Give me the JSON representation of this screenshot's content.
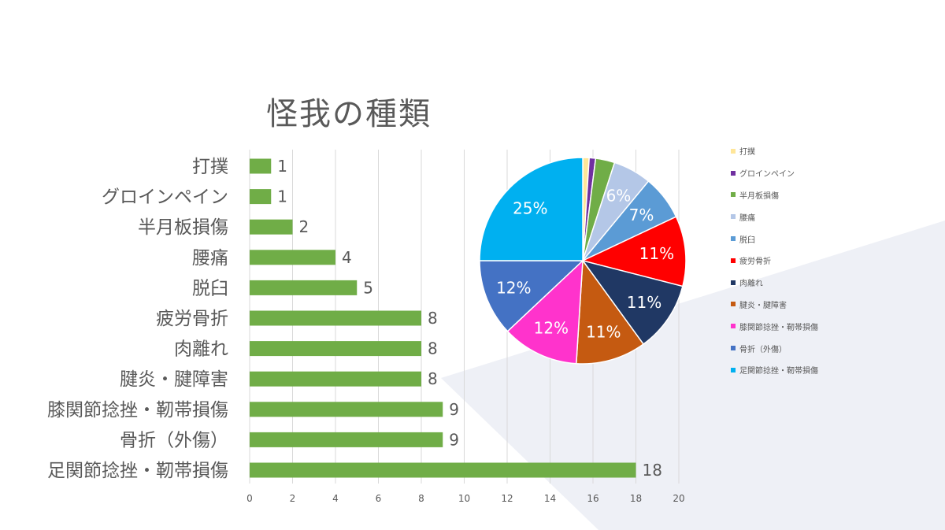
{
  "colors": {
    "bar": "#70ad47",
    "grid": "#d9d9d9",
    "text": "#595959",
    "background_shape": "#eef0f6"
  },
  "chart_data": [
    {
      "type": "bar",
      "orientation": "horizontal",
      "title": "怪我の種類",
      "categories": [
        "打撲",
        "グロインペイン",
        "半月板損傷",
        "腰痛",
        "脱臼",
        "疲労骨折",
        "肉離れ",
        "腱炎・腱障害",
        "膝関節捻挫・靭帯損傷",
        "骨折（外傷）",
        "足関節捻挫・靭帯損傷"
      ],
      "values": [
        1,
        1,
        2,
        4,
        5,
        8,
        8,
        8,
        9,
        9,
        18
      ],
      "xlim": [
        0,
        20
      ],
      "xticks": [
        "0",
        "2",
        "4",
        "6",
        "8",
        "10",
        "12",
        "14",
        "16",
        "18",
        "20"
      ],
      "grid": true,
      "data_labels": true
    },
    {
      "type": "pie",
      "legend_position": "right",
      "slices": [
        {
          "label": "打撲",
          "percent": 1,
          "color": "#ffe699",
          "pct_label": ""
        },
        {
          "label": "グロインペイン",
          "percent": 1,
          "color": "#7030a0",
          "pct_label": ""
        },
        {
          "label": "半月板損傷",
          "percent": 3,
          "color": "#70ad47",
          "pct_label": ""
        },
        {
          "label": "腰痛",
          "percent": 6,
          "color": "#b4c7e7",
          "pct_label": "6%"
        },
        {
          "label": "脱臼",
          "percent": 7,
          "color": "#5b9bd5",
          "pct_label": "7%"
        },
        {
          "label": "疲労骨折",
          "percent": 11,
          "color": "#ff0000",
          "pct_label": "11%"
        },
        {
          "label": "肉離れ",
          "percent": 11,
          "color": "#203864",
          "pct_label": "11%"
        },
        {
          "label": "腱炎・腱障害",
          "percent": 11,
          "color": "#c55a11",
          "pct_label": "11%"
        },
        {
          "label": "膝関節捻挫・靭帯損傷",
          "percent": 12,
          "color": "#ff33cc",
          "pct_label": "12%"
        },
        {
          "label": "骨折（外傷）",
          "percent": 12,
          "color": "#4472c4",
          "pct_label": "12%"
        },
        {
          "label": "足関節捻挫・靭帯損傷",
          "percent": 25,
          "color": "#00b0f0",
          "pct_label": "25%"
        }
      ]
    }
  ]
}
